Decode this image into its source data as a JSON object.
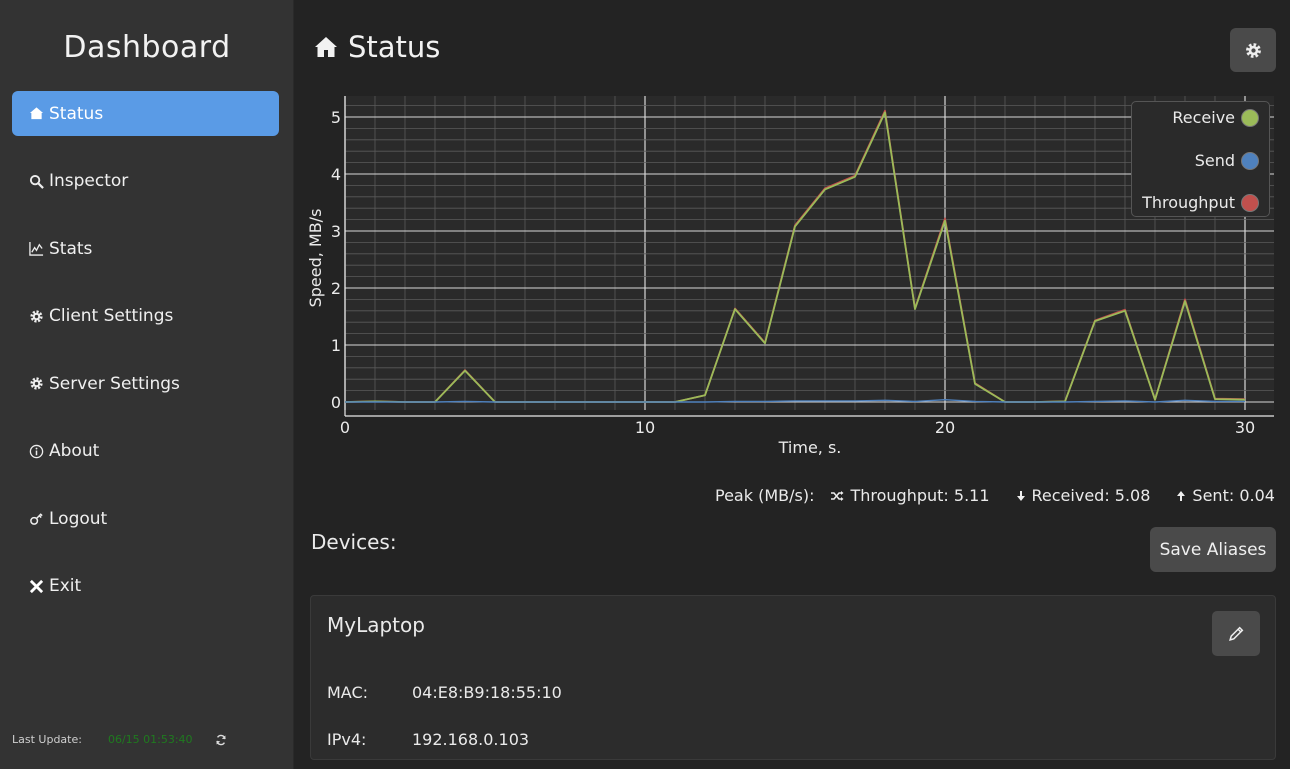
{
  "sidebar": {
    "brand": "Dashboard",
    "items": [
      {
        "label": "Status",
        "icon": "home-icon",
        "active": true
      },
      {
        "label": "Inspector",
        "icon": "search-icon",
        "active": false
      },
      {
        "label": "Stats",
        "icon": "chart-line-icon",
        "active": false
      },
      {
        "label": "Client Settings",
        "icon": "gear-icon",
        "active": false
      },
      {
        "label": "Server Settings",
        "icon": "gear-icon",
        "active": false
      },
      {
        "label": "About",
        "icon": "info-icon",
        "active": false
      },
      {
        "label": "Logout",
        "icon": "unlock-icon",
        "active": false
      },
      {
        "label": "Exit",
        "icon": "close-icon",
        "active": false
      }
    ],
    "last_update_label": "Last Update:",
    "last_update_time": "06/15 01:53:40"
  },
  "header": {
    "title": "Status"
  },
  "colors": {
    "receive": "#9bbb59",
    "send": "#4f81bd",
    "throughput": "#c0504d",
    "active_nav": "#5a9be6"
  },
  "chart_data": {
    "type": "line",
    "xlabel": "Time, s.",
    "ylabel": "Speed, MB/s",
    "xlim": [
      0,
      30
    ],
    "ylim": [
      0,
      5
    ],
    "x_ticks": [
      0,
      10,
      20,
      30
    ],
    "y_ticks": [
      0,
      1,
      2,
      3,
      4,
      5
    ],
    "grid": true,
    "legend_position": "top-right",
    "x": [
      0,
      1,
      2,
      3,
      4,
      5,
      6,
      7,
      8,
      9,
      10,
      11,
      12,
      13,
      14,
      15,
      16,
      17,
      18,
      19,
      20,
      21,
      22,
      23,
      24,
      25,
      26,
      27,
      28,
      29,
      30
    ],
    "series": [
      {
        "name": "Receive",
        "values": [
          0,
          0.01,
          0,
          0,
          0.55,
          0,
          0,
          0,
          0,
          0,
          0,
          0,
          0.12,
          1.63,
          1.03,
          3.08,
          3.73,
          3.95,
          5.08,
          1.63,
          3.18,
          0.32,
          0,
          0,
          0.01,
          1.42,
          1.6,
          0.04,
          1.77,
          0.05,
          0.04
        ]
      },
      {
        "name": "Send",
        "values": [
          0,
          0,
          0,
          0,
          0.01,
          0,
          0,
          0,
          0,
          0,
          0,
          0,
          0,
          0.01,
          0.01,
          0.02,
          0.02,
          0.02,
          0.03,
          0.01,
          0.04,
          0.01,
          0,
          0,
          0,
          0.01,
          0.02,
          0,
          0.03,
          0.01,
          0.01
        ]
      },
      {
        "name": "Throughput",
        "values": [
          0,
          0.01,
          0,
          0,
          0.56,
          0,
          0,
          0,
          0,
          0,
          0,
          0,
          0.12,
          1.64,
          1.04,
          3.1,
          3.75,
          3.97,
          5.11,
          1.64,
          3.22,
          0.33,
          0,
          0,
          0.01,
          1.43,
          1.62,
          0.04,
          1.8,
          0.06,
          0.05
        ]
      }
    ]
  },
  "peak": {
    "label": "Peak (MB/s):",
    "throughput": "Throughput: 5.11",
    "received": "Received: 5.08",
    "sent": "Sent: 0.04"
  },
  "devices": {
    "title": "Devices:",
    "save_label": "Save Aliases",
    "items": [
      {
        "name": "MyLaptop",
        "mac_label": "MAC:",
        "mac": "04:E8:B9:18:55:10",
        "ipv4_label": "IPv4:",
        "ipv4": "192.168.0.103"
      }
    ]
  }
}
